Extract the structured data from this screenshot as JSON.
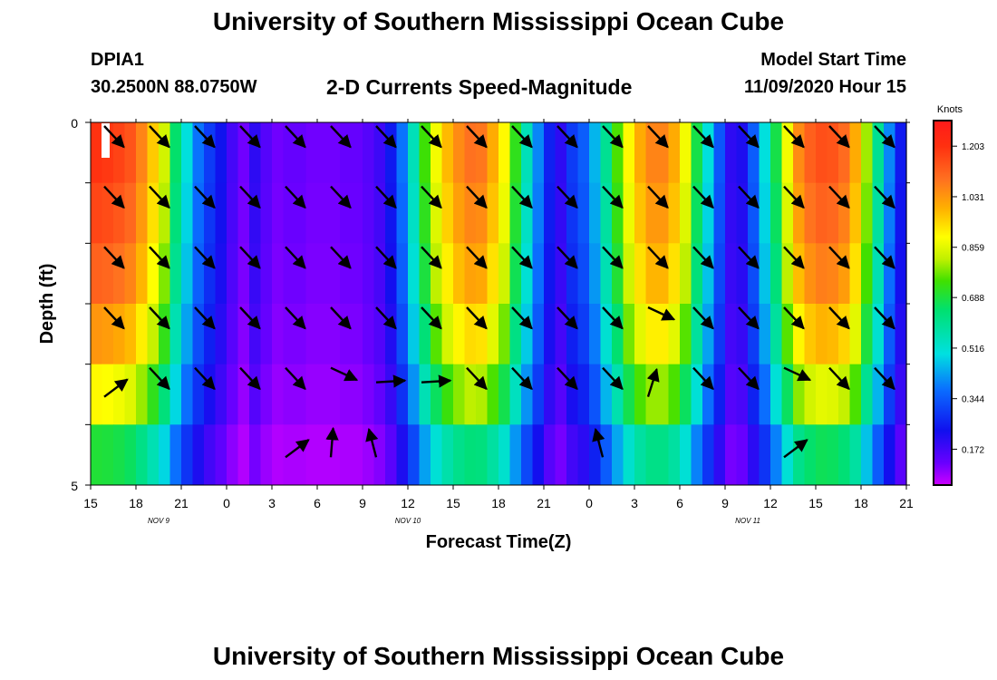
{
  "header": {
    "title": "University of Southern Mississippi Ocean Cube",
    "station": "DPIA1",
    "coords": "30.2500N 88.0750W",
    "subtitle": "2-D Currents Speed-Magnitude",
    "start_label": "Model Start Time",
    "start_value": "11/09/2020 Hour 15"
  },
  "footer": {
    "title": "University of Southern Mississippi Ocean Cube"
  },
  "chart_data": {
    "type": "heatmap",
    "title": "2-D Currents Speed-Magnitude",
    "xlabel": "Forecast Time(Z)",
    "ylabel": "Depth (ft)",
    "x_tick_labels": [
      "15",
      "18",
      "21",
      "0",
      "3",
      "6",
      "9",
      "12",
      "15",
      "18",
      "21",
      "0",
      "3",
      "6",
      "9",
      "12",
      "15",
      "18",
      "21"
    ],
    "y_tick_labels": [
      "0",
      "5"
    ],
    "ylim": [
      0,
      5
    ],
    "date_labels": [
      "NOV  9",
      "NOV  10",
      "NOV  11"
    ],
    "colorbar": {
      "unit": "Knots",
      "tick_labels": [
        "1.203",
        "1.031",
        "0.859",
        "0.688",
        "0.516",
        "0.344",
        "0.172"
      ],
      "range": [
        0.05,
        1.29
      ]
    },
    "speed_profile": [
      1.2,
      1.19,
      1.17,
      1.14,
      1.06,
      0.96,
      0.84,
      0.65,
      0.5,
      0.38,
      0.3,
      0.24,
      0.17,
      0.12,
      0.2,
      0.15,
      0.12,
      0.13,
      0.13,
      0.12,
      0.12,
      0.12,
      0.13,
      0.13,
      0.15,
      0.18,
      0.25,
      0.38,
      0.55,
      0.74,
      0.88,
      0.98,
      1.05,
      1.09,
      1.08,
      1.0,
      0.9,
      0.72,
      0.55,
      0.4,
      0.26,
      0.2,
      0.3,
      0.35,
      0.45,
      0.6,
      0.75,
      0.9,
      1.0,
      1.06,
      1.06,
      1.0,
      0.88,
      0.68,
      0.5,
      0.34,
      0.2,
      0.22,
      0.35,
      0.5,
      0.68,
      0.88,
      1.05,
      1.12,
      1.15,
      1.14,
      1.1,
      1.0,
      0.8,
      0.6,
      0.4,
      0.25
    ],
    "depth_factors": [
      1.0,
      0.97,
      0.93,
      0.86,
      0.75,
      0.58
    ],
    "arrows": [
      {
        "time_index": 1,
        "depth_row": 0,
        "dir": "se"
      },
      {
        "time_index": 2,
        "depth_row": 0,
        "dir": "se"
      },
      {
        "time_index": 3,
        "depth_row": 0,
        "dir": "se"
      },
      {
        "time_index": 4,
        "depth_row": 0,
        "dir": "se"
      },
      {
        "time_index": 5,
        "depth_row": 0,
        "dir": "se"
      },
      {
        "time_index": 6,
        "depth_row": 0,
        "dir": "se"
      },
      {
        "time_index": 7,
        "depth_row": 0,
        "dir": "se"
      },
      {
        "time_index": 8,
        "depth_row": 0,
        "dir": "se"
      },
      {
        "time_index": 9,
        "depth_row": 0,
        "dir": "se"
      },
      {
        "time_index": 10,
        "depth_row": 0,
        "dir": "se"
      },
      {
        "time_index": 11,
        "depth_row": 0,
        "dir": "se"
      },
      {
        "time_index": 12,
        "depth_row": 0,
        "dir": "se"
      },
      {
        "time_index": 13,
        "depth_row": 0,
        "dir": "se"
      },
      {
        "time_index": 14,
        "depth_row": 0,
        "dir": "se"
      },
      {
        "time_index": 15,
        "depth_row": 0,
        "dir": "se"
      },
      {
        "time_index": 16,
        "depth_row": 0,
        "dir": "se"
      },
      {
        "time_index": 17,
        "depth_row": 0,
        "dir": "se"
      },
      {
        "time_index": 18,
        "depth_row": 0,
        "dir": "se"
      },
      {
        "time_index": 1,
        "depth_row": 1,
        "dir": "se"
      },
      {
        "time_index": 2,
        "depth_row": 1,
        "dir": "se"
      },
      {
        "time_index": 3,
        "depth_row": 1,
        "dir": "se"
      },
      {
        "time_index": 4,
        "depth_row": 1,
        "dir": "se"
      },
      {
        "time_index": 5,
        "depth_row": 1,
        "dir": "se"
      },
      {
        "time_index": 6,
        "depth_row": 1,
        "dir": "se"
      },
      {
        "time_index": 7,
        "depth_row": 1,
        "dir": "se"
      },
      {
        "time_index": 8,
        "depth_row": 1,
        "dir": "se"
      },
      {
        "time_index": 9,
        "depth_row": 1,
        "dir": "se"
      },
      {
        "time_index": 10,
        "depth_row": 1,
        "dir": "se"
      },
      {
        "time_index": 11,
        "depth_row": 1,
        "dir": "se"
      },
      {
        "time_index": 12,
        "depth_row": 1,
        "dir": "se"
      },
      {
        "time_index": 13,
        "depth_row": 1,
        "dir": "se"
      },
      {
        "time_index": 14,
        "depth_row": 1,
        "dir": "se"
      },
      {
        "time_index": 15,
        "depth_row": 1,
        "dir": "se"
      },
      {
        "time_index": 16,
        "depth_row": 1,
        "dir": "se"
      },
      {
        "time_index": 17,
        "depth_row": 1,
        "dir": "se"
      },
      {
        "time_index": 18,
        "depth_row": 1,
        "dir": "se"
      },
      {
        "time_index": 1,
        "depth_row": 2,
        "dir": "se"
      },
      {
        "time_index": 2,
        "depth_row": 2,
        "dir": "se"
      },
      {
        "time_index": 3,
        "depth_row": 2,
        "dir": "se"
      },
      {
        "time_index": 4,
        "depth_row": 2,
        "dir": "se"
      },
      {
        "time_index": 5,
        "depth_row": 2,
        "dir": "se"
      },
      {
        "time_index": 6,
        "depth_row": 2,
        "dir": "se"
      },
      {
        "time_index": 7,
        "depth_row": 2,
        "dir": "se"
      },
      {
        "time_index": 8,
        "depth_row": 2,
        "dir": "se"
      },
      {
        "time_index": 9,
        "depth_row": 2,
        "dir": "se"
      },
      {
        "time_index": 10,
        "depth_row": 2,
        "dir": "se"
      },
      {
        "time_index": 11,
        "depth_row": 2,
        "dir": "se"
      },
      {
        "time_index": 12,
        "depth_row": 2,
        "dir": "se"
      },
      {
        "time_index": 13,
        "depth_row": 2,
        "dir": "se"
      },
      {
        "time_index": 14,
        "depth_row": 2,
        "dir": "se"
      },
      {
        "time_index": 15,
        "depth_row": 2,
        "dir": "se"
      },
      {
        "time_index": 16,
        "depth_row": 2,
        "dir": "se"
      },
      {
        "time_index": 17,
        "depth_row": 2,
        "dir": "se"
      },
      {
        "time_index": 18,
        "depth_row": 2,
        "dir": "se"
      },
      {
        "time_index": 1,
        "depth_row": 3,
        "dir": "se"
      },
      {
        "time_index": 2,
        "depth_row": 3,
        "dir": "se"
      },
      {
        "time_index": 3,
        "depth_row": 3,
        "dir": "se"
      },
      {
        "time_index": 4,
        "depth_row": 3,
        "dir": "se"
      },
      {
        "time_index": 5,
        "depth_row": 3,
        "dir": "se"
      },
      {
        "time_index": 6,
        "depth_row": 3,
        "dir": "se"
      },
      {
        "time_index": 7,
        "depth_row": 3,
        "dir": "se"
      },
      {
        "time_index": 8,
        "depth_row": 3,
        "dir": "se"
      },
      {
        "time_index": 9,
        "depth_row": 3,
        "dir": "se"
      },
      {
        "time_index": 10,
        "depth_row": 3,
        "dir": "se"
      },
      {
        "time_index": 11,
        "depth_row": 3,
        "dir": "se"
      },
      {
        "time_index": 12,
        "depth_row": 3,
        "dir": "se"
      },
      {
        "time_index": 13,
        "depth_row": 3,
        "dir": "ese"
      },
      {
        "time_index": 14,
        "depth_row": 3,
        "dir": "se"
      },
      {
        "time_index": 15,
        "depth_row": 3,
        "dir": "se"
      },
      {
        "time_index": 16,
        "depth_row": 3,
        "dir": "se"
      },
      {
        "time_index": 17,
        "depth_row": 3,
        "dir": "se"
      },
      {
        "time_index": 18,
        "depth_row": 3,
        "dir": "se"
      },
      {
        "time_index": 1,
        "depth_row": 4,
        "dir": "ne"
      },
      {
        "time_index": 2,
        "depth_row": 4,
        "dir": "se"
      },
      {
        "time_index": 3,
        "depth_row": 4,
        "dir": "se"
      },
      {
        "time_index": 4,
        "depth_row": 4,
        "dir": "se"
      },
      {
        "time_index": 5,
        "depth_row": 4,
        "dir": "se"
      },
      {
        "time_index": 6,
        "depth_row": 4,
        "dir": "ese"
      },
      {
        "time_index": 7,
        "depth_row": 4,
        "dir": "e"
      },
      {
        "time_index": 8,
        "depth_row": 4,
        "dir": "e"
      },
      {
        "time_index": 9,
        "depth_row": 4,
        "dir": "se"
      },
      {
        "time_index": 10,
        "depth_row": 4,
        "dir": "se"
      },
      {
        "time_index": 11,
        "depth_row": 4,
        "dir": "se"
      },
      {
        "time_index": 12,
        "depth_row": 4,
        "dir": "se"
      },
      {
        "time_index": 13,
        "depth_row": 4,
        "dir": "nne"
      },
      {
        "time_index": 14,
        "depth_row": 4,
        "dir": "se"
      },
      {
        "time_index": 15,
        "depth_row": 4,
        "dir": "se"
      },
      {
        "time_index": 16,
        "depth_row": 4,
        "dir": "ese"
      },
      {
        "time_index": 17,
        "depth_row": 4,
        "dir": "se"
      },
      {
        "time_index": 18,
        "depth_row": 4,
        "dir": "se"
      },
      {
        "time_index": 5,
        "depth_row": 5,
        "dir": "ne"
      },
      {
        "time_index": 6,
        "depth_row": 5,
        "dir": "n"
      },
      {
        "time_index": 7,
        "depth_row": 5,
        "dir": "nnw"
      },
      {
        "time_index": 12,
        "depth_row": 5,
        "dir": "nnw"
      },
      {
        "time_index": 16,
        "depth_row": 5,
        "dir": "ne"
      }
    ]
  }
}
